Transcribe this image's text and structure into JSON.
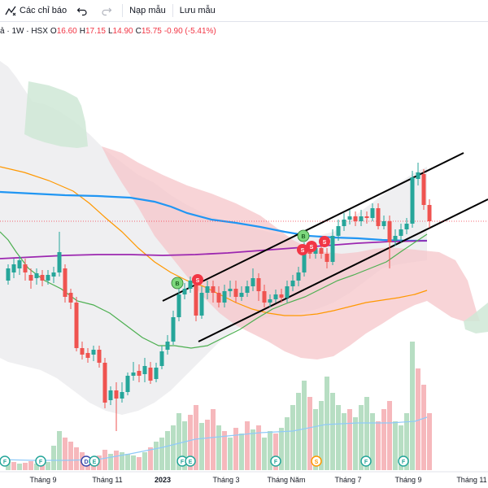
{
  "toolbar": {
    "indicators_label": "Các chỉ báo",
    "templates_label": "Nạp mẫu",
    "save_label": "Lưu mẫu"
  },
  "legend": {
    "symbol": "ả · 1W · HSX",
    "open_label": "O",
    "open": "16.60",
    "high_label": "H",
    "high": "17.15",
    "low_label": "L",
    "low": "14.90",
    "close_label": "C",
    "close": "15.75",
    "change": "-0.90 (-5.41%)"
  },
  "colors": {
    "up": "#26a69a",
    "down": "#ef5350",
    "ma_blue": "#2196f3",
    "ma_purple": "#9c27b0",
    "ma_orange": "#ff9800",
    "ma_green": "#4caf50",
    "cloud_red": "#f8c9cc",
    "cloud_green": "#cfe8d6",
    "bollinger_fill": "#e8e8ea"
  },
  "chart_data": {
    "type": "candlestick",
    "interval": "1W",
    "x_tick_labels": [
      "Tháng 9",
      "Tháng 11",
      "2023",
      "Tháng 3",
      "Tháng Năm",
      "Tháng 7",
      "Tháng 9",
      "Tháng 11"
    ],
    "signals": [
      {
        "label": "B",
        "kind": "buy"
      },
      {
        "label": "S",
        "kind": "sell"
      },
      {
        "label": "B",
        "kind": "buy"
      },
      {
        "label": "S",
        "kind": "sell"
      },
      {
        "label": "S",
        "kind": "sell"
      },
      {
        "label": "S",
        "kind": "sell"
      }
    ],
    "events": [
      {
        "label": "F"
      },
      {
        "label": "F"
      },
      {
        "label": "D"
      },
      {
        "label": "E"
      },
      {
        "label": "F"
      },
      {
        "label": "E"
      },
      {
        "label": "F"
      },
      {
        "label": "F"
      },
      {
        "label": "S"
      },
      {
        "label": "F"
      }
    ],
    "last_close": 15.75
  }
}
